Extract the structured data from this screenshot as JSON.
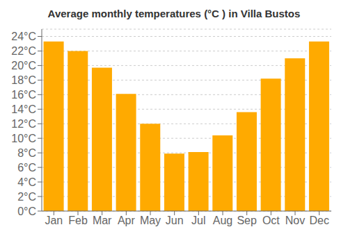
{
  "chart_data": {
    "type": "bar",
    "title": "Average monthly temperatures (°C ) in Villa Bustos",
    "categories": [
      "Jan",
      "Feb",
      "Mar",
      "Apr",
      "May",
      "Jun",
      "Jul",
      "Aug",
      "Sep",
      "Oct",
      "Nov",
      "Dec"
    ],
    "values": [
      23.3,
      22.0,
      19.7,
      16.1,
      12.0,
      7.9,
      8.1,
      10.4,
      13.6,
      18.2,
      21.0,
      23.3
    ],
    "color": "#FFAA00",
    "ylim": [
      0,
      25
    ],
    "yticks": [
      {
        "value": 0,
        "label": "0°C"
      },
      {
        "value": 2,
        "label": "2°C"
      },
      {
        "value": 4,
        "label": "4°C"
      },
      {
        "value": 6,
        "label": "6°C"
      },
      {
        "value": 8,
        "label": "8°C"
      },
      {
        "value": 10,
        "label": "10°C"
      },
      {
        "value": 12,
        "label": "12°C"
      },
      {
        "value": 14,
        "label": "14°C"
      },
      {
        "value": 16,
        "label": "16°C"
      },
      {
        "value": 18,
        "label": "18°C"
      },
      {
        "value": 20,
        "label": "20°C"
      },
      {
        "value": 22,
        "label": "22°C"
      },
      {
        "value": 24,
        "label": "24°C"
      }
    ],
    "grid": true
  }
}
